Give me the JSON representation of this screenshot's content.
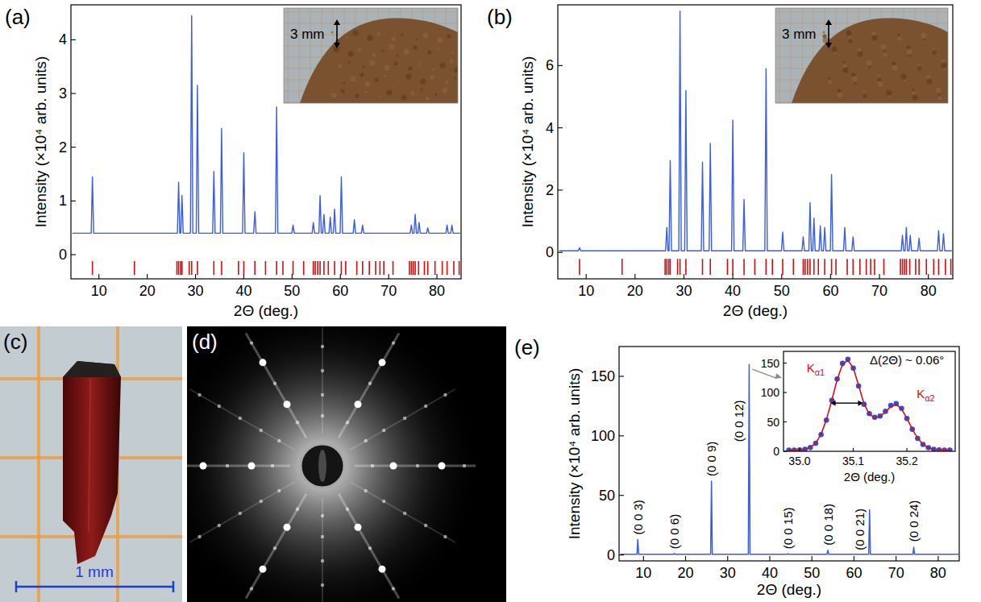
{
  "chart_data": [
    {
      "panel": "(a)",
      "type": "line",
      "x_label": "2Θ (deg.)",
      "y_label": "Intensity (×10⁴ arb. units)",
      "xlim": [
        4.2,
        85
      ],
      "xticks": [
        10,
        20,
        30,
        40,
        50,
        60,
        70,
        80
      ],
      "ylim": [
        -0.45,
        4.65
      ],
      "yticks": [
        0,
        1,
        2,
        3,
        4
      ],
      "x": [
        4.5,
        8.4,
        8.65,
        8.9,
        26.25,
        26.5,
        26.75,
        26.95,
        27.2,
        27.45,
        28.95,
        29.2,
        29.45,
        30.15,
        30.4,
        30.65,
        33.55,
        33.8,
        34.05,
        35.15,
        35.4,
        35.65,
        39.75,
        40.0,
        40.25,
        42.05,
        42.3,
        42.55,
        46.55,
        46.8,
        47.05,
        49.95,
        50.2,
        50.45,
        54.15,
        54.4,
        54.65,
        55.55,
        55.8,
        56.05,
        56.35,
        56.6,
        56.85,
        57.65,
        57.9,
        58.15,
        58.55,
        58.8,
        59.05,
        59.95,
        60.2,
        60.45,
        62.65,
        62.9,
        63.15,
        64.35,
        64.6,
        64.85,
        74.45,
        74.7,
        74.95,
        75.25,
        75.5,
        75.75,
        76.05,
        76.3,
        76.55,
        77.85,
        78.1,
        78.35,
        81.85,
        82.1,
        82.35,
        82.85,
        83.1,
        83.35,
        84.8
      ],
      "series": [
        {
          "type": "line",
          "color": "#3b5be8",
          "values": [
            0.4,
            0.4,
            1.45,
            0.4,
            0.4,
            1.35,
            0.4,
            0.4,
            1.1,
            0.4,
            0.4,
            4.45,
            0.4,
            0.4,
            3.15,
            0.4,
            0.4,
            1.55,
            0.4,
            0.4,
            2.35,
            0.4,
            0.4,
            1.9,
            0.4,
            0.4,
            0.8,
            0.4,
            0.4,
            2.75,
            0.4,
            0.4,
            0.55,
            0.4,
            0.4,
            0.6,
            0.4,
            0.4,
            1.1,
            0.4,
            0.4,
            0.75,
            0.4,
            0.4,
            0.7,
            0.4,
            0.4,
            0.85,
            0.4,
            0.4,
            1.45,
            0.4,
            0.4,
            0.65,
            0.4,
            0.4,
            0.55,
            0.4,
            0.4,
            0.55,
            0.4,
            0.4,
            0.75,
            0.4,
            0.4,
            0.6,
            0.4,
            0.4,
            0.5,
            0.4,
            0.4,
            0.55,
            0.4,
            0.4,
            0.55,
            0.4,
            0.4
          ]
        },
        {
          "type": "tick",
          "color": "#cc1111",
          "x": [
            8.65,
            17.35,
            26.15,
            26.5,
            26.9,
            27.2,
            28.7,
            29.2,
            30.4,
            33.8,
            35.4,
            38.9,
            40.0,
            42.3,
            44.5,
            46.8,
            48.1,
            50.2,
            52.4,
            54.4,
            54.8,
            55.3,
            55.8,
            56.6,
            57.5,
            58.8,
            60.2,
            61.1,
            63.4,
            64.6,
            66.0,
            67.3,
            68.2,
            69.0,
            70.9,
            74.3,
            74.7,
            75.1,
            75.5,
            76.2,
            77.4,
            78.1,
            79.6,
            81.1,
            82.1,
            83.5,
            84.6
          ]
        }
      ],
      "annotations": [
        {
          "text": "3 mm"
        }
      ]
    },
    {
      "panel": "(b)",
      "type": "line",
      "x_label": "2Θ (deg.)",
      "y_label": "Intensity (×10⁴ arb. units)",
      "xlim": [
        4.2,
        85
      ],
      "xticks": [
        10,
        20,
        30,
        40,
        50,
        60,
        70,
        80
      ],
      "ylim": [
        -0.85,
        7.95
      ],
      "yticks": [
        0,
        2,
        4,
        6
      ],
      "x": [
        4.5,
        8.4,
        8.65,
        8.9,
        26.25,
        26.5,
        26.75,
        26.95,
        27.2,
        27.45,
        28.95,
        29.2,
        29.45,
        30.15,
        30.4,
        30.65,
        33.55,
        33.8,
        34.05,
        35.15,
        35.4,
        35.65,
        39.75,
        40.0,
        40.25,
        42.05,
        42.3,
        42.55,
        46.55,
        46.8,
        47.05,
        49.95,
        50.2,
        50.45,
        54.15,
        54.4,
        54.65,
        55.55,
        55.8,
        56.05,
        56.35,
        56.6,
        56.85,
        57.65,
        57.9,
        58.15,
        58.55,
        58.8,
        59.05,
        59.95,
        60.2,
        60.45,
        62.65,
        62.9,
        63.15,
        64.35,
        64.6,
        64.85,
        74.45,
        74.7,
        74.95,
        75.25,
        75.5,
        75.75,
        76.05,
        76.3,
        76.55,
        77.85,
        78.1,
        78.35,
        81.85,
        82.1,
        82.35,
        82.85,
        83.1,
        83.35,
        84.8
      ],
      "series": [
        {
          "type": "line",
          "color": "#3b5be8",
          "values": [
            0.05,
            0.05,
            0.15,
            0.05,
            0.05,
            0.8,
            0.05,
            0.05,
            2.95,
            0.05,
            0.05,
            7.75,
            0.05,
            0.05,
            5.2,
            0.05,
            0.05,
            2.9,
            0.05,
            0.05,
            3.5,
            0.05,
            0.05,
            4.25,
            0.05,
            0.05,
            1.7,
            0.05,
            0.05,
            5.9,
            0.05,
            0.05,
            0.65,
            0.05,
            0.05,
            0.5,
            0.05,
            0.05,
            1.6,
            0.05,
            0.05,
            1.1,
            0.05,
            0.05,
            0.85,
            0.05,
            0.05,
            0.8,
            0.05,
            0.05,
            2.5,
            0.05,
            0.05,
            0.8,
            0.05,
            0.05,
            0.5,
            0.05,
            0.05,
            0.55,
            0.05,
            0.05,
            0.8,
            0.05,
            0.05,
            0.55,
            0.05,
            0.05,
            0.45,
            0.05,
            0.05,
            0.7,
            0.05,
            0.05,
            0.6,
            0.05,
            0.05
          ]
        },
        {
          "type": "tick",
          "color": "#cc1111",
          "x": [
            8.65,
            17.35,
            26.15,
            26.5,
            26.9,
            27.2,
            28.7,
            29.2,
            30.4,
            33.8,
            35.4,
            38.9,
            40.0,
            42.3,
            44.5,
            46.8,
            48.1,
            50.2,
            52.4,
            54.4,
            54.8,
            55.3,
            55.8,
            56.6,
            57.5,
            58.8,
            60.2,
            61.1,
            63.4,
            64.6,
            66.0,
            67.3,
            68.2,
            69.0,
            70.9,
            74.3,
            74.7,
            75.1,
            75.5,
            76.2,
            77.4,
            78.1,
            79.6,
            81.1,
            82.1,
            83.5,
            84.6
          ]
        }
      ],
      "annotations": [
        {
          "text": "3 mm"
        }
      ]
    },
    {
      "panel": "(e)",
      "type": "line",
      "x_label": "2Θ (deg.)",
      "y_label": "Intensity (×10⁴ arb. units)",
      "xlim": [
        4.2,
        85
      ],
      "xticks": [
        10,
        20,
        30,
        40,
        50,
        60,
        70,
        80
      ],
      "ylim": [
        -5,
        175
      ],
      "yticks": [
        0,
        50,
        100,
        150
      ],
      "x": [
        4.5,
        8.45,
        8.65,
        8.85,
        17.15,
        17.35,
        17.55,
        25.95,
        26.15,
        26.35,
        34.9,
        35.1,
        35.3,
        44.1,
        44.3,
        44.5,
        53.6,
        53.8,
        54.0,
        63.5,
        63.7,
        63.9,
        74.0,
        74.2,
        74.4,
        84.8
      ],
      "series": [
        {
          "type": "line",
          "color": "#3b5be8",
          "values": [
            0.5,
            0.5,
            13,
            0.5,
            0.5,
            1.2,
            0.5,
            0.5,
            62,
            0.5,
            0.5,
            160,
            0.5,
            0.5,
            1,
            0.5,
            0.5,
            4,
            0.5,
            0.5,
            38,
            0.5,
            0.5,
            6.5,
            0.5,
            0.5
          ]
        }
      ],
      "annotations": [
        {
          "text": "(0 0 3)",
          "x": 8.65,
          "y": 17
        },
        {
          "text": "(0 0 6)",
          "x": 17.35,
          "y": 5
        },
        {
          "text": "(0 0 9)",
          "x": 26.15,
          "y": 66
        },
        {
          "text": "(0 0 12)",
          "x": 32.6,
          "y": 95
        },
        {
          "text": "(0 0 15)",
          "x": 44.3,
          "y": 5
        },
        {
          "text": "(0 0 18)",
          "x": 53.8,
          "y": 8
        },
        {
          "text": "(0 0 21)",
          "x": 61.3,
          "y": 4
        },
        {
          "text": "(0 0 24)",
          "x": 74.2,
          "y": 11
        }
      ]
    },
    {
      "type": "scatter",
      "x_label": "2Θ (deg.)",
      "xlim": [
        34.97,
        35.29
      ],
      "xticks": [
        {
          "value": 35,
          "label": "35.0"
        },
        35.1,
        35.2
      ],
      "ylim": [
        0,
        170
      ],
      "yticks": [
        0,
        50,
        100,
        150
      ],
      "x": [
        34.98,
        34.99,
        35.0,
        35.01,
        35.02,
        35.03,
        35.04,
        35.05,
        35.06,
        35.07,
        35.08,
        35.09,
        35.1,
        35.11,
        35.12,
        35.13,
        35.14,
        35.15,
        35.16,
        35.17,
        35.18,
        35.19,
        35.2,
        35.21,
        35.22,
        35.23,
        35.24,
        35.25,
        35.26,
        35.27,
        35.28
      ],
      "series": [
        {
          "type": "scatter",
          "marker": "circle",
          "color": "#2f4fd8",
          "values": [
            2,
            2.1,
            2.4,
            3.4,
            6.4,
            13.7,
            28.4,
            53,
            86.8,
            122.9,
            149.6,
            156.7,
            141.4,
            111,
            80,
            64,
            58,
            60,
            68,
            78,
            81,
            73,
            55.7,
            37.5,
            22,
            11.7,
            6.1,
            3.4,
            2.4,
            2.1,
            2
          ]
        },
        {
          "type": "line",
          "color": "#cc1122",
          "values": [
            2,
            2.1,
            2.5,
            3.6,
            6.8,
            14,
            29,
            54,
            87,
            122,
            148,
            155,
            142,
            112,
            81,
            63,
            57,
            59,
            67,
            76,
            80,
            72,
            56,
            38,
            22,
            12,
            6,
            3.5,
            2.5,
            2.1,
            2
          ]
        }
      ],
      "annotations": [
        {
          "text": "Δ(2Θ) ~ 0.06°",
          "x": 35.2,
          "y": 148
        },
        {
          "text": "Kα1",
          "x": 35.03,
          "y": 135,
          "color": "#cc1122"
        },
        {
          "text": "Kα2",
          "x": 35.235,
          "y": 90,
          "color": "#cc1122"
        }
      ],
      "fwhm": {
        "x": [
          35.058,
          35.118
        ],
        "y": 82
      }
    }
  ],
  "images": [
    {
      "panel": "(c)",
      "scale_bar": "1 mm"
    },
    {
      "panel": "(d)"
    }
  ]
}
